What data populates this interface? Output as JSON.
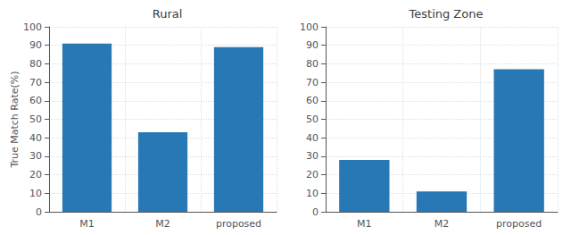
{
  "chart_data": [
    {
      "type": "bar",
      "title": "Rural",
      "ylabel": "True Match Rate(%)",
      "categories": [
        "M1",
        "M2",
        "proposed"
      ],
      "values": [
        91,
        43,
        89
      ],
      "color": "#2878b5",
      "ylim": [
        0,
        100
      ],
      "yticks": [
        0,
        10,
        20,
        30,
        40,
        50,
        60,
        70,
        80,
        90,
        100
      ],
      "grid": true
    },
    {
      "type": "bar",
      "title": "Testing Zone",
      "categories": [
        "M1",
        "M2",
        "proposed"
      ],
      "values": [
        28,
        11,
        77
      ],
      "color": "#2878b5",
      "ylim": [
        0,
        100
      ],
      "yticks": [
        0,
        10,
        20,
        30,
        40,
        50,
        60,
        70,
        80,
        90,
        100
      ],
      "grid": true
    }
  ]
}
